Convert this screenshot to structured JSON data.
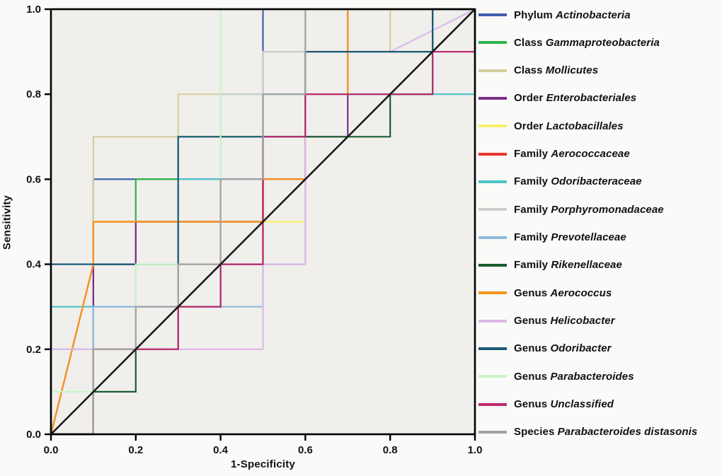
{
  "figure": {
    "background": "#fafaf8",
    "plot_background": "#f0efec",
    "border_color": "#000000",
    "tick_color": "#000000"
  },
  "chart_data": {
    "type": "line",
    "subtype": "roc-step-curves",
    "title": "",
    "xlabel": "1-Specificity",
    "ylabel": "Sensitivity",
    "xlim": [
      0,
      1
    ],
    "ylim": [
      0,
      1
    ],
    "grid": false,
    "legend_position": "right",
    "tick_values": [
      0,
      0.2,
      0.4,
      0.6,
      0.8,
      1.0
    ],
    "x_tick_labels": [
      "0.0",
      "0.2",
      "0.4",
      "0.6",
      "0.8",
      "1.0"
    ],
    "y_tick_labels": [
      "0.0",
      "0.2",
      "0.4",
      "0.6",
      "0.8",
      "1.0"
    ],
    "reference_line": {
      "name": "diagonal-reference",
      "color": "#1a1a1a",
      "points": [
        [
          0,
          0
        ],
        [
          1,
          1
        ]
      ]
    },
    "series": [
      {
        "rank": "Phylum",
        "taxon": "Actinobacteria",
        "color": "#3f5fae",
        "points": [
          [
            0,
            0
          ],
          [
            0.1,
            0
          ],
          [
            0.1,
            0.6
          ],
          [
            0.5,
            0.6
          ],
          [
            0.5,
            1
          ],
          [
            1,
            1
          ]
        ]
      },
      {
        "rank": "Class",
        "taxon": "Gammaproteobacteria",
        "color": "#2db34a",
        "points": [
          [
            0,
            0
          ],
          [
            0.1,
            0
          ],
          [
            0.1,
            0.4
          ],
          [
            0.2,
            0.4
          ],
          [
            0.2,
            0.6
          ],
          [
            0.3,
            0.6
          ],
          [
            0.3,
            0.7
          ],
          [
            0.6,
            0.7
          ],
          [
            0.6,
            0.9
          ],
          [
            0.9,
            0.9
          ],
          [
            0.9,
            1
          ],
          [
            1,
            1
          ]
        ]
      },
      {
        "rank": "Class",
        "taxon": "Mollicutes",
        "color": "#d6cf9c",
        "points": [
          [
            0,
            0
          ],
          [
            0.1,
            0
          ],
          [
            0.1,
            0.7
          ],
          [
            0.3,
            0.7
          ],
          [
            0.3,
            0.8
          ],
          [
            0.5,
            0.8
          ],
          [
            0.5,
            0.9
          ],
          [
            0.8,
            0.9
          ],
          [
            0.8,
            1
          ],
          [
            1,
            1
          ]
        ]
      },
      {
        "rank": "Order",
        "taxon": "Enterobacteriales",
        "color": "#7b2d8b",
        "points": [
          [
            0,
            0
          ],
          [
            0.1,
            0
          ],
          [
            0.1,
            0.4
          ],
          [
            0.2,
            0.4
          ],
          [
            0.2,
            0.5
          ],
          [
            0.5,
            0.5
          ],
          [
            0.5,
            0.6
          ],
          [
            0.6,
            0.6
          ],
          [
            0.6,
            0.7
          ],
          [
            0.7,
            0.7
          ],
          [
            0.7,
            0.8
          ],
          [
            0.9,
            0.8
          ],
          [
            0.9,
            1
          ],
          [
            1,
            1
          ]
        ]
      },
      {
        "rank": "Order",
        "taxon": "Lactobacillales",
        "color": "#f8f06a",
        "points": [
          [
            0,
            0
          ],
          [
            0.1,
            0.4
          ],
          [
            0.1,
            0.5
          ],
          [
            0.6,
            0.5
          ],
          [
            0.6,
            0.8
          ],
          [
            0.7,
            0.8
          ],
          [
            0.7,
            1
          ],
          [
            1,
            1
          ]
        ]
      },
      {
        "rank": "Family",
        "taxon": "Aerococcaceae",
        "color": "#e8332a",
        "points": [
          [
            0,
            0
          ],
          [
            0.1,
            0.4
          ],
          [
            0.1,
            0.5
          ],
          [
            0.5,
            0.5
          ],
          [
            0.5,
            0.6
          ],
          [
            0.6,
            0.6
          ],
          [
            0.6,
            0.8
          ],
          [
            0.7,
            0.8
          ],
          [
            0.7,
            1
          ],
          [
            1,
            1
          ]
        ]
      },
      {
        "rank": "Family",
        "taxon": "Odoribacteraceae",
        "color": "#4cc5c9",
        "points": [
          [
            0,
            0
          ],
          [
            0,
            0.3
          ],
          [
            0.3,
            0.3
          ],
          [
            0.3,
            0.6
          ],
          [
            0.4,
            0.6
          ],
          [
            0.4,
            0.8
          ],
          [
            1,
            0.8
          ],
          [
            1,
            1
          ]
        ]
      },
      {
        "rank": "Family",
        "taxon": "Porphyromonadaceae",
        "color": "#cfcfcf",
        "points": [
          [
            0,
            0
          ],
          [
            0,
            0.2
          ],
          [
            0.1,
            0.2
          ],
          [
            0.1,
            0.3
          ],
          [
            0.2,
            0.3
          ],
          [
            0.2,
            0.4
          ],
          [
            0.4,
            0.4
          ],
          [
            0.4,
            0.8
          ],
          [
            0.5,
            0.8
          ],
          [
            0.5,
            0.9
          ],
          [
            0.6,
            0.9
          ],
          [
            0.6,
            1
          ],
          [
            1,
            1
          ]
        ]
      },
      {
        "rank": "Family",
        "taxon": "Prevotellaceae",
        "color": "#8fbbde",
        "points": [
          [
            0,
            0
          ],
          [
            0,
            0.2
          ],
          [
            0.1,
            0.2
          ],
          [
            0.1,
            0.3
          ],
          [
            0.5,
            0.3
          ],
          [
            0.5,
            0.4
          ],
          [
            0.6,
            0.4
          ],
          [
            0.6,
            0.8
          ],
          [
            0.7,
            0.8
          ],
          [
            0.7,
            1
          ],
          [
            1,
            1
          ]
        ]
      },
      {
        "rank": "Family",
        "taxon": "Rikenellaceae",
        "color": "#1a5c30",
        "points": [
          [
            0,
            0
          ],
          [
            0.1,
            0
          ],
          [
            0.1,
            0.1
          ],
          [
            0.2,
            0.1
          ],
          [
            0.2,
            0.2
          ],
          [
            0.3,
            0.2
          ],
          [
            0.3,
            0.3
          ],
          [
            0.4,
            0.3
          ],
          [
            0.4,
            0.4
          ],
          [
            0.5,
            0.4
          ],
          [
            0.5,
            0.7
          ],
          [
            0.8,
            0.7
          ],
          [
            0.8,
            0.8
          ],
          [
            0.9,
            0.8
          ],
          [
            0.9,
            1
          ],
          [
            1,
            1
          ]
        ]
      },
      {
        "rank": "Genus",
        "taxon": "Aerococcus",
        "color": "#f7941e",
        "points": [
          [
            0,
            0
          ],
          [
            0.1,
            0.4
          ],
          [
            0.1,
            0.5
          ],
          [
            0.5,
            0.5
          ],
          [
            0.5,
            0.6
          ],
          [
            0.6,
            0.6
          ],
          [
            0.6,
            0.8
          ],
          [
            0.7,
            0.8
          ],
          [
            0.7,
            1
          ],
          [
            1,
            1
          ]
        ]
      },
      {
        "rank": "Genus",
        "taxon": "Helicobacter",
        "color": "#ddb8ea",
        "points": [
          [
            0,
            0
          ],
          [
            0,
            0.2
          ],
          [
            0.5,
            0.2
          ],
          [
            0.5,
            0.4
          ],
          [
            0.6,
            0.4
          ],
          [
            0.6,
            0.9
          ],
          [
            0.8,
            0.9
          ],
          [
            1,
            1
          ]
        ]
      },
      {
        "rank": "Genus",
        "taxon": "Odoribacter",
        "color": "#1d5a78",
        "points": [
          [
            0,
            0
          ],
          [
            0,
            0.4
          ],
          [
            0.3,
            0.4
          ],
          [
            0.3,
            0.7
          ],
          [
            0.6,
            0.7
          ],
          [
            0.6,
            0.9
          ],
          [
            0.9,
            0.9
          ],
          [
            0.9,
            1
          ],
          [
            1,
            1
          ]
        ]
      },
      {
        "rank": "Genus",
        "taxon": "Parabacteroides",
        "color": "#c8f5c8",
        "points": [
          [
            0,
            0
          ],
          [
            0,
            0.1
          ],
          [
            0.1,
            0.1
          ],
          [
            0.1,
            0.2
          ],
          [
            0.2,
            0.2
          ],
          [
            0.2,
            0.4
          ],
          [
            0.4,
            0.4
          ],
          [
            0.4,
            1
          ],
          [
            1,
            1
          ]
        ]
      },
      {
        "rank": "Genus",
        "taxon": "Unclassified",
        "color": "#bf2a72",
        "points": [
          [
            0,
            0
          ],
          [
            0.1,
            0
          ],
          [
            0.1,
            0.2
          ],
          [
            0.3,
            0.2
          ],
          [
            0.3,
            0.3
          ],
          [
            0.4,
            0.3
          ],
          [
            0.4,
            0.4
          ],
          [
            0.5,
            0.4
          ],
          [
            0.5,
            0.7
          ],
          [
            0.6,
            0.7
          ],
          [
            0.6,
            0.8
          ],
          [
            0.9,
            0.8
          ],
          [
            0.9,
            0.9
          ],
          [
            1,
            0.9
          ],
          [
            1,
            1
          ]
        ]
      },
      {
        "rank": "Species",
        "taxon": "Parabacteroides distasonis",
        "color": "#a2a2a2",
        "points": [
          [
            0,
            0
          ],
          [
            0.1,
            0
          ],
          [
            0.1,
            0.2
          ],
          [
            0.2,
            0.2
          ],
          [
            0.2,
            0.3
          ],
          [
            0.3,
            0.3
          ],
          [
            0.3,
            0.4
          ],
          [
            0.4,
            0.4
          ],
          [
            0.4,
            0.6
          ],
          [
            0.5,
            0.6
          ],
          [
            0.5,
            0.8
          ],
          [
            0.6,
            0.8
          ],
          [
            0.6,
            1
          ],
          [
            1,
            1
          ]
        ]
      }
    ]
  }
}
